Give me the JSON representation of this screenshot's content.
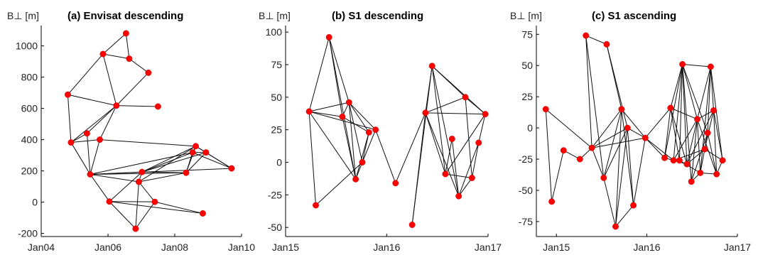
{
  "chart_data": [
    {
      "type": "scatter",
      "title": "(a) Envisat descending",
      "ylabel": "B⊥ [m]",
      "xlim": [
        "2004-01-01",
        "2010-01-01"
      ],
      "ylim": [
        -220,
        1130
      ],
      "xticks": [
        {
          "date": "2004-01-01",
          "label": "Jan04"
        },
        {
          "date": "2006-01-01",
          "label": "Jan06"
        },
        {
          "date": "2008-01-01",
          "label": "Jan08"
        },
        {
          "date": "2010-01-01",
          "label": "Jan10"
        }
      ],
      "yticks": [
        -200,
        0,
        200,
        400,
        600,
        800,
        1000
      ],
      "points": [
        {
          "id": "a1",
          "x": "2004-10-18",
          "y": 688
        },
        {
          "id": "a2",
          "x": "2004-11-22",
          "y": 382
        },
        {
          "id": "a3",
          "x": "2005-05-16",
          "y": 440
        },
        {
          "id": "a4",
          "x": "2005-06-20",
          "y": 178
        },
        {
          "id": "a5",
          "x": "2005-10-03",
          "y": 400
        },
        {
          "id": "a6",
          "x": "2005-11-07",
          "y": 948
        },
        {
          "id": "a7",
          "x": "2006-01-16",
          "y": 4
        },
        {
          "id": "a8",
          "x": "2006-04-03",
          "y": 618
        },
        {
          "id": "a9",
          "x": "2006-07-17",
          "y": 1080
        },
        {
          "id": "a10",
          "x": "2006-08-21",
          "y": 918
        },
        {
          "id": "a11",
          "x": "2006-10-30",
          "y": -170
        },
        {
          "id": "a12",
          "x": "2006-12-04",
          "y": 130
        },
        {
          "id": "a13",
          "x": "2007-01-08",
          "y": 193
        },
        {
          "id": "a14",
          "x": "2007-03-19",
          "y": 828
        },
        {
          "id": "a15",
          "x": "2007-05-28",
          "y": 2
        },
        {
          "id": "a16",
          "x": "2007-07-02",
          "y": 612
        },
        {
          "id": "a17",
          "x": "2008-05-05",
          "y": 188
        },
        {
          "id": "a18",
          "x": "2008-07-14",
          "y": 318
        },
        {
          "id": "a19",
          "x": "2008-08-18",
          "y": 358
        },
        {
          "id": "a20",
          "x": "2008-11-03",
          "y": -72
        },
        {
          "id": "a21",
          "x": "2008-12-08",
          "y": 318
        },
        {
          "id": "a22",
          "x": "2009-09-14",
          "y": 216
        }
      ],
      "edges": [
        [
          "a1",
          "a2"
        ],
        [
          "a1",
          "a6"
        ],
        [
          "a1",
          "a8"
        ],
        [
          "a2",
          "a3"
        ],
        [
          "a2",
          "a4"
        ],
        [
          "a2",
          "a5"
        ],
        [
          "a2",
          "a8"
        ],
        [
          "a3",
          "a4"
        ],
        [
          "a3",
          "a8"
        ],
        [
          "a4",
          "a5"
        ],
        [
          "a5",
          "a8"
        ],
        [
          "a6",
          "a9"
        ],
        [
          "a6",
          "a10"
        ],
        [
          "a6",
          "a8"
        ],
        [
          "a9",
          "a10"
        ],
        [
          "a8",
          "a14"
        ],
        [
          "a8",
          "a16"
        ],
        [
          "a14",
          "a10"
        ],
        [
          "a5",
          "a19"
        ],
        [
          "a4",
          "a7"
        ],
        [
          "a4",
          "a13"
        ],
        [
          "a4",
          "a12"
        ],
        [
          "a4",
          "a17"
        ],
        [
          "a4",
          "a22"
        ],
        [
          "a4",
          "a18"
        ],
        [
          "a7",
          "a13"
        ],
        [
          "a7",
          "a15"
        ],
        [
          "a7",
          "a20"
        ],
        [
          "a7",
          "a11"
        ],
        [
          "a11",
          "a12"
        ],
        [
          "a11",
          "a15"
        ],
        [
          "a12",
          "a13"
        ],
        [
          "a12",
          "a15"
        ],
        [
          "a12",
          "a19"
        ],
        [
          "a12",
          "a17"
        ],
        [
          "a15",
          "a20"
        ],
        [
          "a13",
          "a17"
        ],
        [
          "a13",
          "a18"
        ],
        [
          "a13",
          "a19"
        ],
        [
          "a17",
          "a18"
        ],
        [
          "a17",
          "a21"
        ],
        [
          "a17",
          "a19"
        ],
        [
          "a18",
          "a19"
        ],
        [
          "a18",
          "a21"
        ],
        [
          "a18",
          "a22"
        ],
        [
          "a19",
          "a21"
        ],
        [
          "a19",
          "a22"
        ],
        [
          "a21",
          "a22"
        ],
        [
          "a13",
          "a21"
        ]
      ]
    },
    {
      "type": "scatter",
      "title": "(b) S1 descending",
      "ylabel": "B⊥ [m]",
      "xlim": [
        "2015-01-01",
        "2017-01-01"
      ],
      "ylim": [
        -57,
        105
      ],
      "xticks": [
        {
          "date": "2015-01-01",
          "label": "Jan15"
        },
        {
          "date": "2016-01-01",
          "label": "Jan16"
        },
        {
          "date": "2017-01-01",
          "label": "Jan17"
        }
      ],
      "yticks": [
        -50,
        -25,
        0,
        25,
        50,
        75,
        100
      ],
      "points": [
        {
          "id": "b1",
          "x": "2015-03-27",
          "y": 39
        },
        {
          "id": "b2",
          "x": "2015-04-20",
          "y": -33
        },
        {
          "id": "b3",
          "x": "2015-06-07",
          "y": 96
        },
        {
          "id": "b4",
          "x": "2015-07-25",
          "y": 35
        },
        {
          "id": "b5",
          "x": "2015-08-18",
          "y": 46
        },
        {
          "id": "b6",
          "x": "2015-09-11",
          "y": -13
        },
        {
          "id": "b7",
          "x": "2015-10-05",
          "y": 0
        },
        {
          "id": "b8",
          "x": "2015-10-29",
          "y": 23
        },
        {
          "id": "b9",
          "x": "2015-11-22",
          "y": 25
        },
        {
          "id": "b10",
          "x": "2016-02-02",
          "y": -16
        },
        {
          "id": "b11",
          "x": "2016-04-02",
          "y": -48
        },
        {
          "id": "b12",
          "x": "2016-05-20",
          "y": 38
        },
        {
          "id": "b13",
          "x": "2016-06-13",
          "y": 74
        },
        {
          "id": "b14",
          "x": "2016-07-31",
          "y": -9
        },
        {
          "id": "b15",
          "x": "2016-08-24",
          "y": 18
        },
        {
          "id": "b16",
          "x": "2016-09-17",
          "y": -26
        },
        {
          "id": "b17",
          "x": "2016-10-11",
          "y": 50
        },
        {
          "id": "b18",
          "x": "2016-11-04",
          "y": -12
        },
        {
          "id": "b19",
          "x": "2016-11-28",
          "y": 15
        },
        {
          "id": "b20",
          "x": "2016-12-22",
          "y": 37
        }
      ],
      "edges": [
        [
          "b1",
          "b2"
        ],
        [
          "b1",
          "b3"
        ],
        [
          "b1",
          "b4"
        ],
        [
          "b1",
          "b5"
        ],
        [
          "b1",
          "b6"
        ],
        [
          "b1",
          "b9"
        ],
        [
          "b3",
          "b5"
        ],
        [
          "b3",
          "b6"
        ],
        [
          "b3",
          "b4"
        ],
        [
          "b4",
          "b5"
        ],
        [
          "b4",
          "b6"
        ],
        [
          "b4",
          "b8"
        ],
        [
          "b5",
          "b6"
        ],
        [
          "b5",
          "b7"
        ],
        [
          "b5",
          "b8"
        ],
        [
          "b5",
          "b9"
        ],
        [
          "b6",
          "b7"
        ],
        [
          "b6",
          "b8"
        ],
        [
          "b7",
          "b8"
        ],
        [
          "b7",
          "b9"
        ],
        [
          "b2",
          "b7"
        ],
        [
          "b9",
          "b10"
        ],
        [
          "b10",
          "b12"
        ],
        [
          "b11",
          "b12"
        ],
        [
          "b11",
          "b13"
        ],
        [
          "b12",
          "b13"
        ],
        [
          "b12",
          "b14"
        ],
        [
          "b12",
          "b17"
        ],
        [
          "b12",
          "b16"
        ],
        [
          "b12",
          "b20"
        ],
        [
          "b13",
          "b14"
        ],
        [
          "b13",
          "b16"
        ],
        [
          "b13",
          "b17"
        ],
        [
          "b13",
          "b20"
        ],
        [
          "b14",
          "b15"
        ],
        [
          "b14",
          "b18"
        ],
        [
          "b14",
          "b20"
        ],
        [
          "b15",
          "b16"
        ],
        [
          "b16",
          "b19"
        ],
        [
          "b16",
          "b18"
        ],
        [
          "b17",
          "b18"
        ],
        [
          "b17",
          "b20"
        ],
        [
          "b18",
          "b19"
        ],
        [
          "b19",
          "b20"
        ]
      ]
    },
    {
      "type": "scatter",
      "title": "(c) S1 ascending",
      "ylabel": "B⊥ [m]",
      "xlim": [
        "2014-10-12",
        "2017-01-01"
      ],
      "ylim": [
        -87,
        82
      ],
      "xticks": [
        {
          "date": "2015-01-01",
          "label": "Jan15"
        },
        {
          "date": "2016-01-01",
          "label": "Jan16"
        },
        {
          "date": "2017-01-01",
          "label": "Jan17"
        }
      ],
      "yticks": [
        -75,
        -50,
        -25,
        0,
        25,
        50,
        75
      ],
      "points": [
        {
          "id": "c1",
          "x": "2014-11-19",
          "y": 15
        },
        {
          "id": "c2",
          "x": "2014-12-13",
          "y": -59
        },
        {
          "id": "c3",
          "x": "2015-01-30",
          "y": -18
        },
        {
          "id": "c4",
          "x": "2015-04-06",
          "y": -25
        },
        {
          "id": "c5",
          "x": "2015-04-30",
          "y": 74
        },
        {
          "id": "c6",
          "x": "2015-05-24",
          "y": -16
        },
        {
          "id": "c7",
          "x": "2015-07-11",
          "y": -40
        },
        {
          "id": "c8",
          "x": "2015-07-23",
          "y": 67
        },
        {
          "id": "c9",
          "x": "2015-08-28",
          "y": -79
        },
        {
          "id": "c10",
          "x": "2015-09-21",
          "y": 15
        },
        {
          "id": "c11",
          "x": "2015-10-15",
          "y": 0
        },
        {
          "id": "c12",
          "x": "2015-11-08",
          "y": -62
        },
        {
          "id": "c13",
          "x": "2015-12-26",
          "y": -8
        },
        {
          "id": "c14",
          "x": "2016-03-13",
          "y": -24
        },
        {
          "id": "c15",
          "x": "2016-04-06",
          "y": 16
        },
        {
          "id": "c16",
          "x": "2016-04-18",
          "y": -26
        },
        {
          "id": "c17",
          "x": "2016-05-12",
          "y": -26
        },
        {
          "id": "c18",
          "x": "2016-05-24",
          "y": 51
        },
        {
          "id": "c19",
          "x": "2016-06-11",
          "y": -29
        },
        {
          "id": "c20",
          "x": "2016-06-29",
          "y": -43
        },
        {
          "id": "c21",
          "x": "2016-07-23",
          "y": 7
        },
        {
          "id": "c22",
          "x": "2016-08-04",
          "y": -36
        },
        {
          "id": "c23",
          "x": "2016-08-22",
          "y": -17
        },
        {
          "id": "c24",
          "x": "2016-09-03",
          "y": -4
        },
        {
          "id": "c25",
          "x": "2016-09-15",
          "y": 49
        },
        {
          "id": "c26",
          "x": "2016-09-27",
          "y": 14
        },
        {
          "id": "c27",
          "x": "2016-10-09",
          "y": -37
        },
        {
          "id": "c28",
          "x": "2016-11-02",
          "y": -26
        }
      ],
      "edges": [
        [
          "c1",
          "c2"
        ],
        [
          "c1",
          "c6"
        ],
        [
          "c2",
          "c3"
        ],
        [
          "c3",
          "c4"
        ],
        [
          "c4",
          "c6"
        ],
        [
          "c5",
          "c8"
        ],
        [
          "c5",
          "c6"
        ],
        [
          "c5",
          "c7"
        ],
        [
          "c6",
          "c7"
        ],
        [
          "c6",
          "c10"
        ],
        [
          "c6",
          "c11"
        ],
        [
          "c6",
          "c13"
        ],
        [
          "c7",
          "c10"
        ],
        [
          "c7",
          "c11"
        ],
        [
          "c7",
          "c9"
        ],
        [
          "c8",
          "c10"
        ],
        [
          "c8",
          "c11"
        ],
        [
          "c9",
          "c10"
        ],
        [
          "c9",
          "c11"
        ],
        [
          "c9",
          "c12"
        ],
        [
          "c10",
          "c12"
        ],
        [
          "c10",
          "c13"
        ],
        [
          "c11",
          "c12"
        ],
        [
          "c11",
          "c13"
        ],
        [
          "c12",
          "c13"
        ],
        [
          "c13",
          "c14"
        ],
        [
          "c13",
          "c15"
        ],
        [
          "c13",
          "c16"
        ],
        [
          "c14",
          "c15"
        ],
        [
          "c14",
          "c18"
        ],
        [
          "c15",
          "c17"
        ],
        [
          "c15",
          "c19"
        ],
        [
          "c15",
          "c21"
        ],
        [
          "c16",
          "c18"
        ],
        [
          "c16",
          "c17"
        ],
        [
          "c16",
          "c21"
        ],
        [
          "c17",
          "c18"
        ],
        [
          "c17",
          "c22"
        ],
        [
          "c18",
          "c19"
        ],
        [
          "c18",
          "c20"
        ],
        [
          "c18",
          "c21"
        ],
        [
          "c18",
          "c25"
        ],
        [
          "c18",
          "c24"
        ],
        [
          "c19",
          "c21"
        ],
        [
          "c19",
          "c23"
        ],
        [
          "c19",
          "c26"
        ],
        [
          "c20",
          "c21"
        ],
        [
          "c20",
          "c24"
        ],
        [
          "c20",
          "c22"
        ],
        [
          "c21",
          "c22"
        ],
        [
          "c21",
          "c25"
        ],
        [
          "c21",
          "c27"
        ],
        [
          "c22",
          "c23"
        ],
        [
          "c22",
          "c25"
        ],
        [
          "c23",
          "c24"
        ],
        [
          "c23",
          "c26"
        ],
        [
          "c24",
          "c25"
        ],
        [
          "c24",
          "c27"
        ],
        [
          "c25",
          "c26"
        ],
        [
          "c25",
          "c28"
        ],
        [
          "c26",
          "c27"
        ],
        [
          "c26",
          "c28"
        ],
        [
          "c27",
          "c28"
        ],
        [
          "c15",
          "c18"
        ],
        [
          "c21",
          "c26"
        ],
        [
          "c16",
          "c23"
        ],
        [
          "c14",
          "c19"
        ],
        [
          "c22",
          "c27"
        ],
        [
          "c23",
          "c28"
        ]
      ]
    }
  ]
}
